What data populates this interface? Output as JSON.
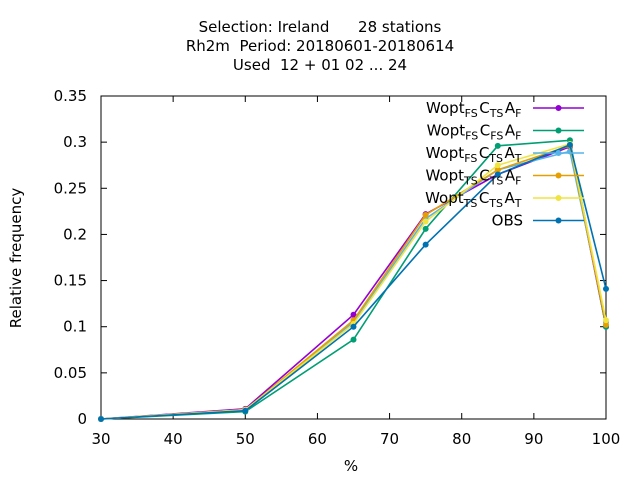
{
  "title": {
    "line1": "Selection: Ireland      28 stations",
    "line2": "Rh2m  Period: 20180601-20180614",
    "line3": "Used  12 + 01 02 ... 24"
  },
  "chart_data": {
    "type": "line",
    "xlabel": "%",
    "ylabel": "Relative frequency",
    "xlim": [
      30,
      100
    ],
    "ylim": [
      0,
      0.35
    ],
    "xticks": [
      "30",
      "40",
      "50",
      "60",
      "70",
      "80",
      "90",
      "100"
    ],
    "yticks": [
      "0",
      "0.05",
      "0.1",
      "0.15",
      "0.2",
      "0.25",
      "0.3",
      "0.35"
    ],
    "grid": false,
    "legend_position": "top-right",
    "x": [
      30,
      50,
      65,
      75,
      85,
      95,
      100
    ],
    "series": [
      {
        "name": "Wopt_FS C_TS A_F",
        "legend": [
          [
            "Wopt",
            ""
          ],
          [
            "FS",
            "sub"
          ],
          [
            "C",
            ""
          ],
          [
            "TS",
            "sub"
          ],
          [
            "A",
            ""
          ],
          [
            "F",
            "sub"
          ]
        ],
        "color": "#9400d3",
        "values": [
          0.0,
          0.011,
          0.113,
          0.222,
          0.265,
          0.295,
          0.1
        ]
      },
      {
        "name": "Wopt_FS C_FS A_F",
        "legend": [
          [
            "Wopt",
            ""
          ],
          [
            "FS",
            "sub"
          ],
          [
            "C",
            ""
          ],
          [
            "FS",
            "sub"
          ],
          [
            "A",
            ""
          ],
          [
            "F",
            "sub"
          ]
        ],
        "color": "#009e73",
        "values": [
          0.0,
          0.008,
          0.086,
          0.206,
          0.296,
          0.302,
          0.1
        ]
      },
      {
        "name": "Wopt_FS C_TS A_T",
        "legend": [
          [
            "Wopt",
            ""
          ],
          [
            "FS",
            "sub"
          ],
          [
            "C",
            ""
          ],
          [
            "TS",
            "sub"
          ],
          [
            "A",
            ""
          ],
          [
            "T",
            "sub"
          ]
        ],
        "color": "#56b4e9",
        "values": [
          0.0,
          0.01,
          0.105,
          0.217,
          0.27,
          0.29,
          0.105
        ]
      },
      {
        "name": "Wopt_TS C_TS A_F",
        "legend": [
          [
            "Wopt",
            ""
          ],
          [
            "TS",
            "sub"
          ],
          [
            "C",
            ""
          ],
          [
            "TS",
            "sub"
          ],
          [
            "A",
            ""
          ],
          [
            "F",
            "sub"
          ]
        ],
        "color": "#e69f00",
        "values": [
          0.0,
          0.01,
          0.107,
          0.221,
          0.27,
          0.296,
          0.102
        ]
      },
      {
        "name": "Wopt_TS C_TS A_T",
        "legend": [
          [
            "Wopt",
            ""
          ],
          [
            "TS",
            "sub"
          ],
          [
            "C",
            ""
          ],
          [
            "TS",
            "sub"
          ],
          [
            "A",
            ""
          ],
          [
            "T",
            "sub"
          ]
        ],
        "color": "#f0e442",
        "values": [
          0.0,
          0.01,
          0.103,
          0.214,
          0.275,
          0.298,
          0.107
        ]
      },
      {
        "name": "OBS",
        "legend": [
          [
            "OBS",
            ""
          ]
        ],
        "color": "#0072b2",
        "values": [
          0.0,
          0.009,
          0.1,
          0.189,
          0.265,
          0.297,
          0.141
        ]
      }
    ]
  }
}
